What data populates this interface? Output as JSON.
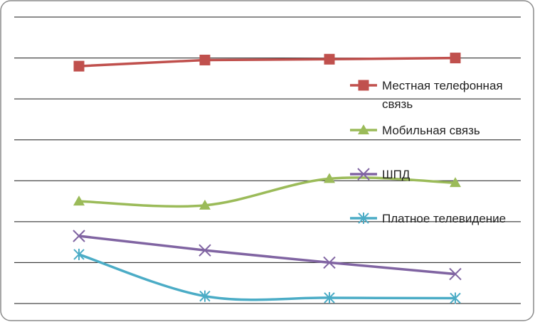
{
  "chart_data": {
    "type": "line",
    "categories": [
      "",
      "",
      "",
      ""
    ],
    "ylim": [
      0,
      7
    ],
    "grid": true,
    "legend_position": "right",
    "series": [
      {
        "name": "Местная телефонная связь",
        "color": "#C0504D",
        "marker": "square",
        "smooth": false,
        "values": [
          5.8,
          5.95,
          5.97,
          6.0
        ]
      },
      {
        "name": "Мобильная связь",
        "color": "#9BBB59",
        "marker": "triangle",
        "smooth": true,
        "values": [
          2.5,
          2.4,
          3.05,
          2.95
        ]
      },
      {
        "name": "ШПД",
        "color": "#8064A2",
        "marker": "x",
        "smooth": false,
        "values": [
          1.65,
          1.3,
          1.0,
          0.72
        ]
      },
      {
        "name": "Платное телевидение",
        "color": "#4BACC6",
        "marker": "star",
        "smooth": true,
        "values": [
          1.2,
          0.18,
          0.14,
          0.13
        ]
      }
    ]
  }
}
